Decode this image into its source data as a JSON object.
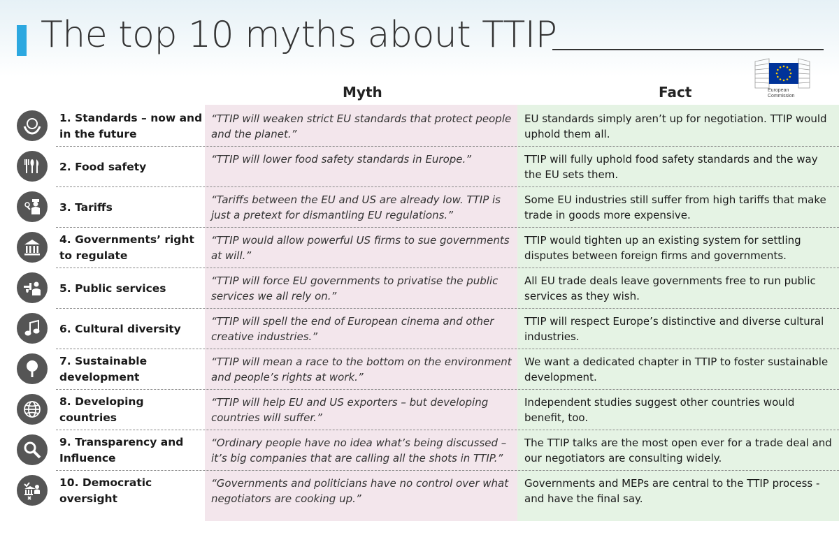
{
  "title": "The top 10 myths about TTIP",
  "logo": {
    "line1": "European",
    "line2": "Commission"
  },
  "colors": {
    "accent": "#2ca8e0",
    "myth_bg": "#f3e6ec",
    "fact_bg": "#e5f3e4",
    "icon_bg": "#555555",
    "eu_blue": "#003399",
    "eu_star": "#ffcc00"
  },
  "headers": {
    "myth": "Myth",
    "fact": "Fact"
  },
  "rows": [
    {
      "icon": "globe-hands-icon",
      "topic": "1. Standards – now and in the future",
      "myth": "“TTIP will weaken strict EU standards that protect people and the planet.”",
      "fact": "EU standards simply aren’t up for negotiation. TTIP would uphold them all."
    },
    {
      "icon": "cutlery-icon",
      "topic": "2. Food safety",
      "myth": "“TTIP will lower food safety standards in Europe.”",
      "fact": "TTIP will fully uphold food safety standards and the way the EU sets them."
    },
    {
      "icon": "customs-officer-icon",
      "topic": "3. Tariffs",
      "myth": "“Tariffs between the EU and US are already low. TTIP is just a pretext for dismantling EU regulations.”",
      "fact": "Some EU industries still suffer from high tariffs that make trade in goods more expensive."
    },
    {
      "icon": "government-building-icon",
      "topic": "4. Governments’ right to regulate",
      "myth": "“TTIP would allow powerful US firms to sue governments at will.”",
      "fact": "TTIP would tighten up an existing system for settling disputes between foreign firms and governments."
    },
    {
      "icon": "public-services-icon",
      "topic": "5. Public services",
      "myth": "“TTIP will force EU governments to privatise the public services we all rely on.”",
      "fact": "All EU trade deals leave governments free to run public services as they wish."
    },
    {
      "icon": "music-note-icon",
      "topic": "6. Cultural diversity",
      "myth": "“TTIP will spell the end of European cinema and other creative industries.”",
      "fact": "TTIP will respect Europe’s distinctive and diverse cultural industries."
    },
    {
      "icon": "tree-icon",
      "topic": "7. Sustainable development",
      "myth": "“TTIP will mean a race to the bottom on the environment and people’s rights at work.”",
      "fact": "We want a dedicated chapter in TTIP to foster sustainable development."
    },
    {
      "icon": "globe-icon",
      "topic": "8. Developing countries",
      "myth": "“TTIP will help EU and US exporters – but developing countries will suffer.”",
      "fact": "Independent studies suggest other countries would benefit, too."
    },
    {
      "icon": "magnifier-icon",
      "topic": "9. Transparency and Influence",
      "myth": "“Ordinary people have no idea what’s being discussed – it’s big companies that are calling all the shots in TTIP.”",
      "fact": "The TTIP talks are the most open ever for a trade deal and our negotiators are consulting widely."
    },
    {
      "icon": "democratic-vote-icon",
      "topic": "10. Democratic oversight",
      "myth": "“Governments and politicians have no control over what negotiators are cooking up.”",
      "fact": "Governments and MEPs are central to the TTIP process - and have the final say."
    }
  ]
}
